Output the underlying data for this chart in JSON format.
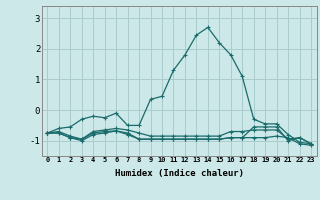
{
  "xlabel": "Humidex (Indice chaleur)",
  "bg_color": "#cce8e8",
  "grid_color": "#aacccc",
  "line_color": "#1a6b6b",
  "x_values": [
    0,
    1,
    2,
    3,
    4,
    5,
    6,
    7,
    8,
    9,
    10,
    11,
    12,
    13,
    14,
    15,
    16,
    17,
    18,
    19,
    20,
    21,
    22,
    23
  ],
  "line1": [
    -0.75,
    -0.6,
    -0.55,
    -0.3,
    -0.2,
    -0.25,
    -0.1,
    -0.5,
    -0.5,
    0.35,
    0.45,
    1.3,
    1.8,
    2.45,
    2.7,
    2.2,
    1.8,
    1.1,
    -0.3,
    -0.45,
    -0.45,
    -0.8,
    -1.05,
    -1.1
  ],
  "line2": [
    -0.75,
    -0.7,
    -0.85,
    -0.95,
    -0.7,
    -0.65,
    -0.6,
    -0.65,
    -0.75,
    -0.85,
    -0.85,
    -0.85,
    -0.85,
    -0.85,
    -0.85,
    -0.85,
    -0.7,
    -0.7,
    -0.65,
    -0.65,
    -0.65,
    -0.95,
    -0.9,
    -1.1
  ],
  "line3": [
    -0.75,
    -0.75,
    -0.9,
    -0.95,
    -0.75,
    -0.7,
    -0.68,
    -0.75,
    -0.95,
    -0.95,
    -0.95,
    -0.95,
    -0.95,
    -0.95,
    -0.95,
    -0.95,
    -0.9,
    -0.9,
    -0.9,
    -0.9,
    -0.85,
    -0.9,
    -1.1,
    -1.15
  ],
  "line4": [
    -0.75,
    -0.75,
    -0.9,
    -1.0,
    -0.8,
    -0.75,
    -0.68,
    -0.8,
    -0.95,
    -0.95,
    -0.95,
    -0.95,
    -0.95,
    -0.95,
    -0.95,
    -0.95,
    -0.9,
    -0.9,
    -0.55,
    -0.55,
    -0.55,
    -1.0,
    -0.9,
    -1.1
  ],
  "ylim": [
    -1.5,
    3.4
  ],
  "yticks": [
    -1,
    0,
    1,
    2,
    3
  ],
  "xticks": [
    0,
    1,
    2,
    3,
    4,
    5,
    6,
    7,
    8,
    9,
    10,
    11,
    12,
    13,
    14,
    15,
    16,
    17,
    18,
    19,
    20,
    21,
    22,
    23
  ]
}
